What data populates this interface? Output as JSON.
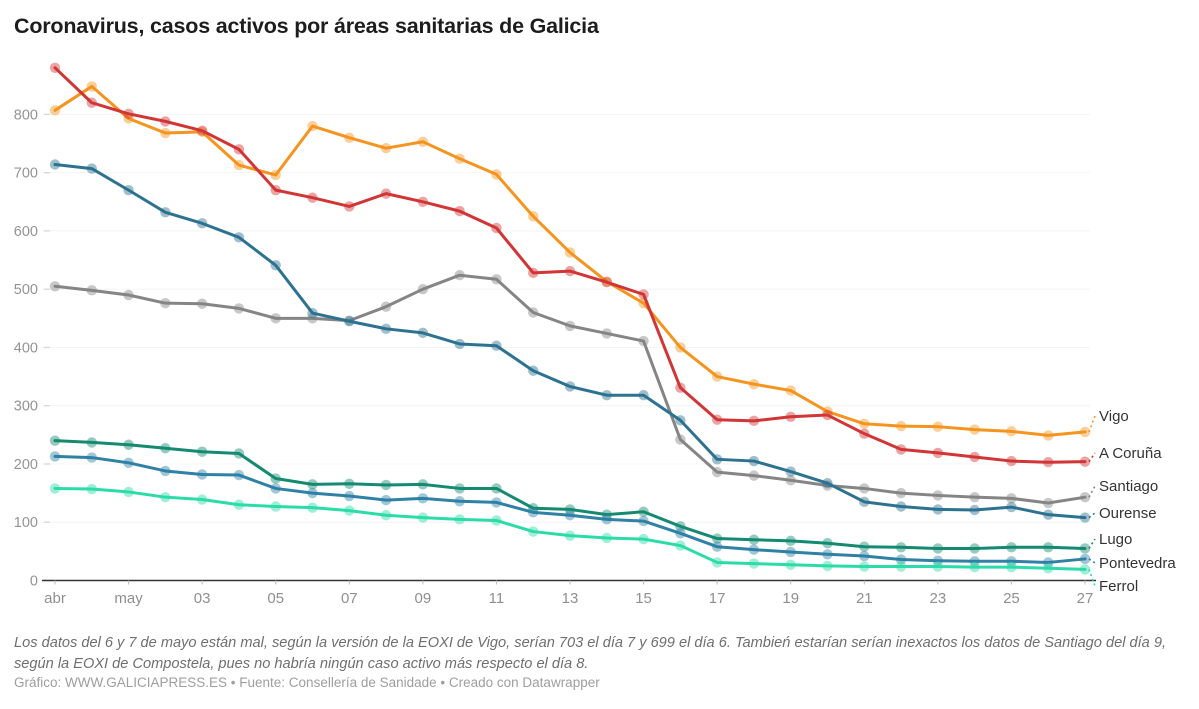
{
  "title": "Coronavirus, casos activos por áreas sanitarias de Galicia",
  "footer": {
    "note": "Los datos del 6 y 7 de mayo están mal, según la versión de la EOXI de Vigo, serían 703 el día 7 y 699 el día 6. Tambień estarían serían inexactos los datos de Santiago del día 9, según la EOXI de Compostela, pues no habría ningún caso activo más respecto el día 8.",
    "credits": "Gráfico: WWW.GALICIAPRESS.ES • Fuente: Consellería de Sanidade • Creado con Datawrapper"
  },
  "chart_data": {
    "type": "line",
    "title": "Coronavirus, casos activos por áreas sanitarias de Galicia",
    "x_tick_labels": [
      "abr",
      "may",
      "03",
      "05",
      "07",
      "09",
      "11",
      "13",
      "15",
      "17",
      "19",
      "21",
      "23",
      "25",
      "27"
    ],
    "x_tick_indices": [
      0,
      2,
      4,
      6,
      8,
      10,
      12,
      14,
      16,
      18,
      20,
      22,
      24,
      26,
      28
    ],
    "n_points": 29,
    "y_ticks": [
      0,
      100,
      200,
      300,
      400,
      500,
      600,
      700,
      800
    ],
    "ylim": [
      0,
      900
    ],
    "grid": "faint-horizontal",
    "legend_position": "right-edge-direct-labels",
    "series": [
      {
        "name": "Vigo",
        "color": "#f5941f",
        "values": [
          807,
          848,
          793,
          768,
          770,
          713,
          696,
          780,
          760,
          742,
          753,
          724,
          697,
          625,
          563,
          513,
          476,
          400,
          350,
          337,
          326,
          290,
          269,
          265,
          264,
          259,
          256,
          249,
          255
        ]
      },
      {
        "name": "A Coruña",
        "color": "#d23535",
        "values": [
          880,
          820,
          801,
          788,
          772,
          740,
          670,
          657,
          642,
          664,
          650,
          634,
          605,
          528,
          531,
          512,
          491,
          331,
          276,
          274,
          281,
          284,
          252,
          225,
          219,
          212,
          205,
          203,
          204
        ]
      },
      {
        "name": "Santiago",
        "color": "#858585",
        "values": [
          505,
          498,
          490,
          476,
          475,
          467,
          450,
          450,
          446,
          470,
          500,
          524,
          517,
          460,
          437,
          424,
          411,
          242,
          186,
          180,
          172,
          163,
          158,
          150,
          146,
          143,
          141,
          133,
          143
        ]
      },
      {
        "name": "Ourense",
        "color": "#2d7291",
        "values": [
          714,
          707,
          670,
          632,
          613,
          589,
          541,
          459,
          445,
          432,
          425,
          406,
          403,
          360,
          333,
          318,
          318,
          275,
          208,
          205,
          187,
          167,
          135,
          127,
          122,
          121,
          126,
          113,
          108
        ]
      },
      {
        "name": "Lugo",
        "color": "#148a71",
        "values": [
          240,
          237,
          233,
          227,
          221,
          218,
          175,
          165,
          166,
          164,
          165,
          158,
          158,
          124,
          122,
          113,
          118,
          93,
          72,
          70,
          68,
          64,
          58,
          57,
          55,
          55,
          57,
          57,
          55
        ]
      },
      {
        "name": "Pontevedra",
        "color": "#2f81a6",
        "values": [
          213,
          211,
          202,
          188,
          182,
          181,
          158,
          150,
          145,
          138,
          141,
          136,
          134,
          117,
          112,
          105,
          102,
          81,
          58,
          53,
          49,
          45,
          42,
          36,
          34,
          33,
          33,
          31,
          37
        ]
      },
      {
        "name": "Ferrol",
        "color": "#2bdca8",
        "values": [
          158,
          157,
          152,
          143,
          139,
          130,
          127,
          125,
          120,
          112,
          108,
          105,
          103,
          84,
          77,
          73,
          71,
          60,
          31,
          29,
          27,
          25,
          24,
          24,
          24,
          23,
          23,
          21,
          19
        ]
      }
    ]
  }
}
